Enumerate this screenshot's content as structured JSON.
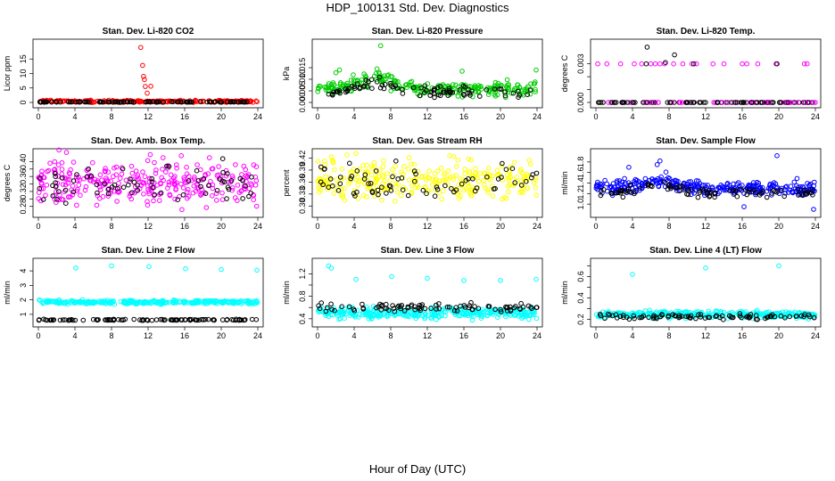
{
  "figure": {
    "title": "HDP_100131  Std. Dev. Diagnostics",
    "xlabel": "Hour of Day (UTC)"
  },
  "chart_data": [
    {
      "type": "scatter",
      "title": "Stan. Dev. Li-820 CO2",
      "ylabel": "Licor ppm",
      "xlim": [
        0,
        24
      ],
      "ylim": [
        0,
        20
      ],
      "xticks": [
        0,
        4,
        8,
        12,
        16,
        20,
        24
      ],
      "yticks": [
        0,
        5,
        10,
        15
      ],
      "colors": [
        "#ff0000",
        "#000000"
      ],
      "base": [
        0.4,
        0.15
      ],
      "spread": [
        0.3,
        0.1
      ],
      "series_points": [
        220,
        100
      ],
      "outliers": {
        "x": [
          11.2,
          11.4,
          11.5,
          11.6,
          11.7,
          12.3,
          11.9
        ],
        "y": [
          19,
          12.8,
          9.0,
          7.9,
          5.5,
          5.6,
          3.2
        ],
        "color": "#ff0000"
      }
    },
    {
      "type": "scatter",
      "title": "Stan. Dev. Li-820 Pressure",
      "ylabel": "kPa",
      "xlim": [
        0,
        24
      ],
      "ylim": [
        0,
        0.025
      ],
      "xticks": [
        0,
        4,
        8,
        12,
        16,
        20,
        24
      ],
      "yticks": [
        0.0,
        0.005,
        0.01,
        0.015
      ],
      "ytick_labels": [
        "0.000",
        "0.005",
        "0.010",
        "0.015"
      ],
      "colors": [
        "#00cc00",
        "#000000"
      ],
      "base": [
        0.006,
        0.0045
      ],
      "spread": [
        0.003,
        0.0025
      ],
      "hump": {
        "center": 6.5,
        "width": 3,
        "amp": 0.004
      },
      "series_points": [
        260,
        90
      ],
      "outliers": {
        "x": [
          6.9,
          2.4,
          15.8,
          23.9,
          2.0,
          6.5
        ],
        "y": [
          0.0245,
          0.014,
          0.0135,
          0.014,
          0.0128,
          0.0145
        ],
        "color": "#00cc00"
      }
    },
    {
      "type": "scatter",
      "title": "Stan. Dev. Li-820 Temp.",
      "ylabel": "degrees C",
      "xlim": [
        0,
        24
      ],
      "ylim": [
        0,
        0.0045
      ],
      "xticks": [
        0,
        4,
        8,
        12,
        16,
        20,
        24
      ],
      "yticks": [
        0.0,
        0.001,
        0.002,
        0.003
      ],
      "ytick_labels": [
        "0.000",
        "",
        "0.003"
      ],
      "ytick_label_values": [
        0.0,
        0.0015,
        0.003
      ],
      "discrete": true,
      "levels": [
        0,
        0.003
      ],
      "colors": [
        "#ff00ff",
        "#000000"
      ],
      "level_points": {
        "magenta_high": [
          0.2,
          1.2,
          2.7,
          4.2,
          5.0,
          6.0,
          6.5,
          7.0,
          7.5,
          8.5,
          9.5,
          10.5,
          11.0,
          12.8,
          14.0,
          16.0,
          16.5,
          17.7,
          19.7,
          22.8,
          23.1
        ],
        "black_high": [
          5.5,
          10.7,
          19.8
        ],
        "black_top": [
          5.6,
          7.6,
          8.6
        ]
      }
    },
    {
      "type": "scatter",
      "title": "Stan. Dev. Amb. Box Temp.",
      "ylabel": "degrees C",
      "xlim": [
        0,
        24
      ],
      "ylim": [
        0.265,
        0.42
      ],
      "xticks": [
        0,
        4,
        8,
        12,
        16,
        20,
        24
      ],
      "yticks": [
        0.28,
        0.3,
        0.32,
        0.34,
        0.36,
        0.38,
        0.4
      ],
      "ytick_labels": [
        "0.28",
        "0.32",
        "0.36",
        "0.40"
      ],
      "ytick_label_values": [
        0.28,
        0.32,
        0.36,
        0.4
      ],
      "colors": [
        "#ff00ff",
        "#000000"
      ],
      "base": [
        0.345,
        0.343
      ],
      "spread": [
        0.055,
        0.045
      ],
      "series_points": [
        300,
        70
      ]
    },
    {
      "type": "scatter",
      "title": "Stan. Dev. Gas Stream RH",
      "ylabel": "percent",
      "xlim": [
        0,
        24
      ],
      "ylim": [
        0.285,
        0.43
      ],
      "xticks": [
        0,
        4,
        8,
        12,
        16,
        20,
        24
      ],
      "yticks": [
        0.3,
        0.33,
        0.36,
        0.39,
        0.42
      ],
      "ytick_labels": [
        "0.30",
        "0.33",
        "0.36",
        "0.39",
        "0.42"
      ],
      "colors": [
        "#ffff00",
        "#000000"
      ],
      "base": [
        0.365,
        0.355
      ],
      "spread": [
        0.05,
        0.045
      ],
      "series_points": [
        300,
        70
      ]
    },
    {
      "type": "scatter",
      "title": "Stan. Dev. Sample Flow",
      "ylabel": "ml/min",
      "xlim": [
        0,
        24
      ],
      "ylim": [
        0.85,
        1.95
      ],
      "xticks": [
        0,
        4,
        8,
        12,
        16,
        20,
        24
      ],
      "yticks": [
        1.0,
        1.2,
        1.4,
        1.6,
        1.8
      ],
      "ytick_labels": [
        "1.0",
        "1.2",
        "1.4",
        "1.6",
        "1.8"
      ],
      "colors": [
        "#0000ff",
        "#000000"
      ],
      "base": [
        1.3,
        1.22
      ],
      "spread": [
        0.13,
        0.1
      ],
      "hump": {
        "center": 6.5,
        "width": 2.5,
        "amp": 0.15
      },
      "series_points": [
        300,
        90
      ],
      "outliers": {
        "x": [
          7.0,
          6.7,
          19.8,
          23.8,
          16.2,
          3.6
        ],
        "y": [
          1.82,
          1.75,
          1.92,
          0.9,
          0.95,
          1.7
        ],
        "color": "#0000ff"
      }
    },
    {
      "type": "scatter",
      "title": "Stan. Dev. Line 2 Flow",
      "ylabel": "ml/min",
      "xlim": [
        0,
        24
      ],
      "ylim": [
        0.5,
        4.5
      ],
      "xticks": [
        0,
        4,
        8,
        12,
        16,
        20,
        24
      ],
      "yticks": [
        1,
        2,
        3,
        4
      ],
      "colors": [
        "#00ffff",
        "#000000"
      ],
      "base": [
        1.85,
        0.62
      ],
      "spread": [
        0.12,
        0.04
      ],
      "series_points": [
        320,
        100
      ],
      "outliers": {
        "x": [
          4.1,
          8.0,
          12.1,
          16.1,
          20.0,
          23.9
        ],
        "y": [
          4.2,
          4.35,
          4.3,
          4.15,
          4.1,
          4.05
        ],
        "color": "#00ffff"
      }
    },
    {
      "type": "scatter",
      "title": "Stan. Dev. Line 3 Flow",
      "ylabel": "ml/min",
      "xlim": [
        0,
        24
      ],
      "ylim": [
        0.35,
        1.38
      ],
      "xticks": [
        0,
        4,
        8,
        12,
        16,
        20,
        24
      ],
      "yticks": [
        0.4,
        0.6,
        0.8,
        1.0,
        1.2
      ],
      "ytick_labels": [
        "0.4",
        "0.8",
        "1.2"
      ],
      "ytick_label_values": [
        0.4,
        0.8,
        1.2
      ],
      "colors": [
        "#00ffff",
        "#000000"
      ],
      "base": [
        0.5,
        0.6
      ],
      "spread": [
        0.1,
        0.07
      ],
      "series_points": [
        340,
        90
      ],
      "outliers": {
        "x": [
          1.2,
          1.5,
          4.2,
          8.1,
          12.0,
          16.0,
          20.0,
          23.9
        ],
        "y": [
          1.34,
          1.3,
          1.1,
          1.15,
          1.12,
          1.08,
          1.08,
          1.1
        ],
        "color": "#00ffff"
      }
    },
    {
      "type": "scatter",
      "title": "Stan. Dev. Line 4 (LT) Flow",
      "ylabel": "ml/min",
      "xlim": [
        0,
        24
      ],
      "ylim": [
        0.18,
        0.72
      ],
      "xticks": [
        0,
        4,
        8,
        12,
        16,
        20,
        24
      ],
      "yticks": [
        0.2,
        0.3,
        0.4,
        0.5,
        0.6,
        0.7
      ],
      "ytick_labels": [
        "0.2",
        "0.4",
        "0.6"
      ],
      "ytick_label_values": [
        0.2,
        0.4,
        0.6
      ],
      "colors": [
        "#00ffff",
        "#000000"
      ],
      "base": [
        0.245,
        0.225
      ],
      "spread": [
        0.03,
        0.025
      ],
      "series_points": [
        330,
        90
      ],
      "outliers": {
        "x": [
          4.0,
          12.0,
          20.0
        ],
        "y": [
          0.62,
          0.68,
          0.7
        ],
        "color": "#00ffff"
      }
    }
  ]
}
